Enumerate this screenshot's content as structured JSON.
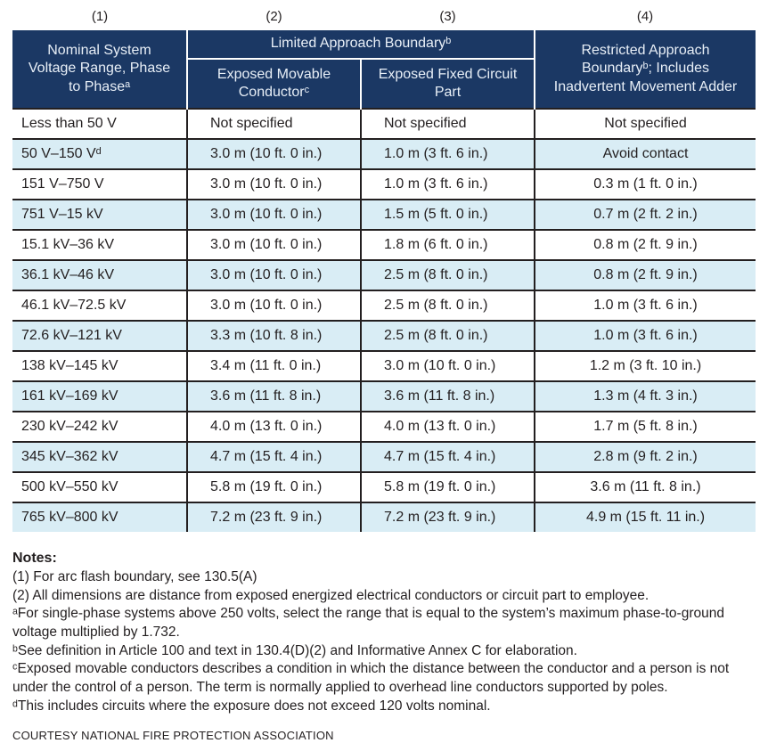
{
  "colors": {
    "header_bg": "#1b3864",
    "header_text": "#e8eff7",
    "row_alt_bg": "#d9edf5",
    "border_dark": "#231f20",
    "body_text": "#231f20"
  },
  "table": {
    "column_numbers": [
      "(1)",
      "(2)",
      "(3)",
      "(4)"
    ],
    "header": {
      "col1": "Nominal System Voltage Range, Phase to Phaseᵃ",
      "group": "Limited Approach Boundaryᵇ",
      "sub1": "Exposed Movable Conductorᶜ",
      "sub2": "Exposed Fixed Circuit Part",
      "col4": "Restricted Approach Boundaryᵇ; Includes Inadvertent Movement Adder"
    },
    "rows": [
      {
        "cells": [
          "Less than 50 V",
          "Not specified",
          "Not specified",
          "Not specified"
        ]
      },
      {
        "cells": [
          "50 V–150 Vᵈ",
          "3.0 m (10 ft. 0 in.)",
          "1.0 m (3 ft. 6 in.)",
          "Avoid contact"
        ]
      },
      {
        "cells": [
          "151 V–750 V",
          "3.0 m (10 ft. 0 in.)",
          "1.0 m (3 ft. 6 in.)",
          "0.3 m (1 ft. 0 in.)"
        ]
      },
      {
        "cells": [
          "751 V–15 kV",
          "3.0 m (10 ft. 0 in.)",
          "1.5 m (5 ft. 0 in.)",
          "0.7 m (2 ft. 2 in.)"
        ]
      },
      {
        "cells": [
          "15.1 kV–36 kV",
          "3.0 m (10 ft. 0 in.)",
          "1.8 m (6 ft. 0 in.)",
          "0.8 m (2 ft. 9 in.)"
        ]
      },
      {
        "cells": [
          "36.1 kV–46 kV",
          "3.0 m (10 ft. 0 in.)",
          "2.5 m (8 ft. 0 in.)",
          "0.8 m (2 ft. 9 in.)"
        ]
      },
      {
        "cells": [
          "46.1 kV–72.5 kV",
          "3.0 m (10 ft. 0 in.)",
          "2.5 m (8 ft. 0 in.)",
          "1.0 m (3 ft. 6 in.)"
        ]
      },
      {
        "cells": [
          "72.6 kV–121 kV",
          "3.3 m (10 ft. 8 in.)",
          "2.5 m (8 ft. 0 in.)",
          "1.0 m (3 ft. 6 in.)"
        ]
      },
      {
        "cells": [
          "138 kV–145 kV",
          "3.4 m (11 ft. 0 in.)",
          "3.0 m (10 ft. 0 in.)",
          "1.2 m (3 ft. 10 in.)"
        ]
      },
      {
        "cells": [
          "161 kV–169 kV",
          "3.6 m (11 ft. 8 in.)",
          "3.6 m (11 ft. 8 in.)",
          "1.3 m (4 ft. 3 in.)"
        ]
      },
      {
        "cells": [
          "230 kV–242 kV",
          "4.0 m (13 ft. 0 in.)",
          "4.0 m (13 ft. 0 in.)",
          "1.7 m (5 ft. 8 in.)"
        ]
      },
      {
        "cells": [
          "345 kV–362 kV",
          "4.7 m (15 ft. 4 in.)",
          "4.7 m (15 ft. 4 in.)",
          "2.8 m (9 ft. 2 in.)"
        ]
      },
      {
        "cells": [
          "500 kV–550 kV",
          "5.8 m (19 ft. 0 in.)",
          "5.8 m (19 ft. 0 in.)",
          "3.6 m (11 ft. 8 in.)"
        ]
      },
      {
        "cells": [
          "765 kV–800 kV",
          "7.2 m (23 ft. 9 in.)",
          "7.2 m (23 ft. 9 in.)",
          "4.9 m (15 ft. 11 in.)"
        ]
      }
    ]
  },
  "notes": {
    "heading": "Notes:",
    "items": [
      "(1) For arc flash boundary, see 130.5(A)",
      "(2) All dimensions are distance from exposed energized electrical conductors or circuit part to employee.",
      "ᵃFor single-phase systems above 250 volts, select the range that is equal to the system’s maximum phase-to-ground voltage multiplied by 1.732.",
      "ᵇSee definition in Article 100 and text in 130.4(D)(2) and Informative Annex C for elaboration.",
      "ᶜExposed movable conductors describes a condition in which the distance between the conductor and a person is not under the control of a person. The term is normally applied to overhead line conductors supported by poles.",
      "ᵈThis includes circuits where the exposure does not exceed 120 volts nominal."
    ],
    "courtesy": "COURTESY NATIONAL FIRE PROTECTION ASSOCIATION"
  }
}
